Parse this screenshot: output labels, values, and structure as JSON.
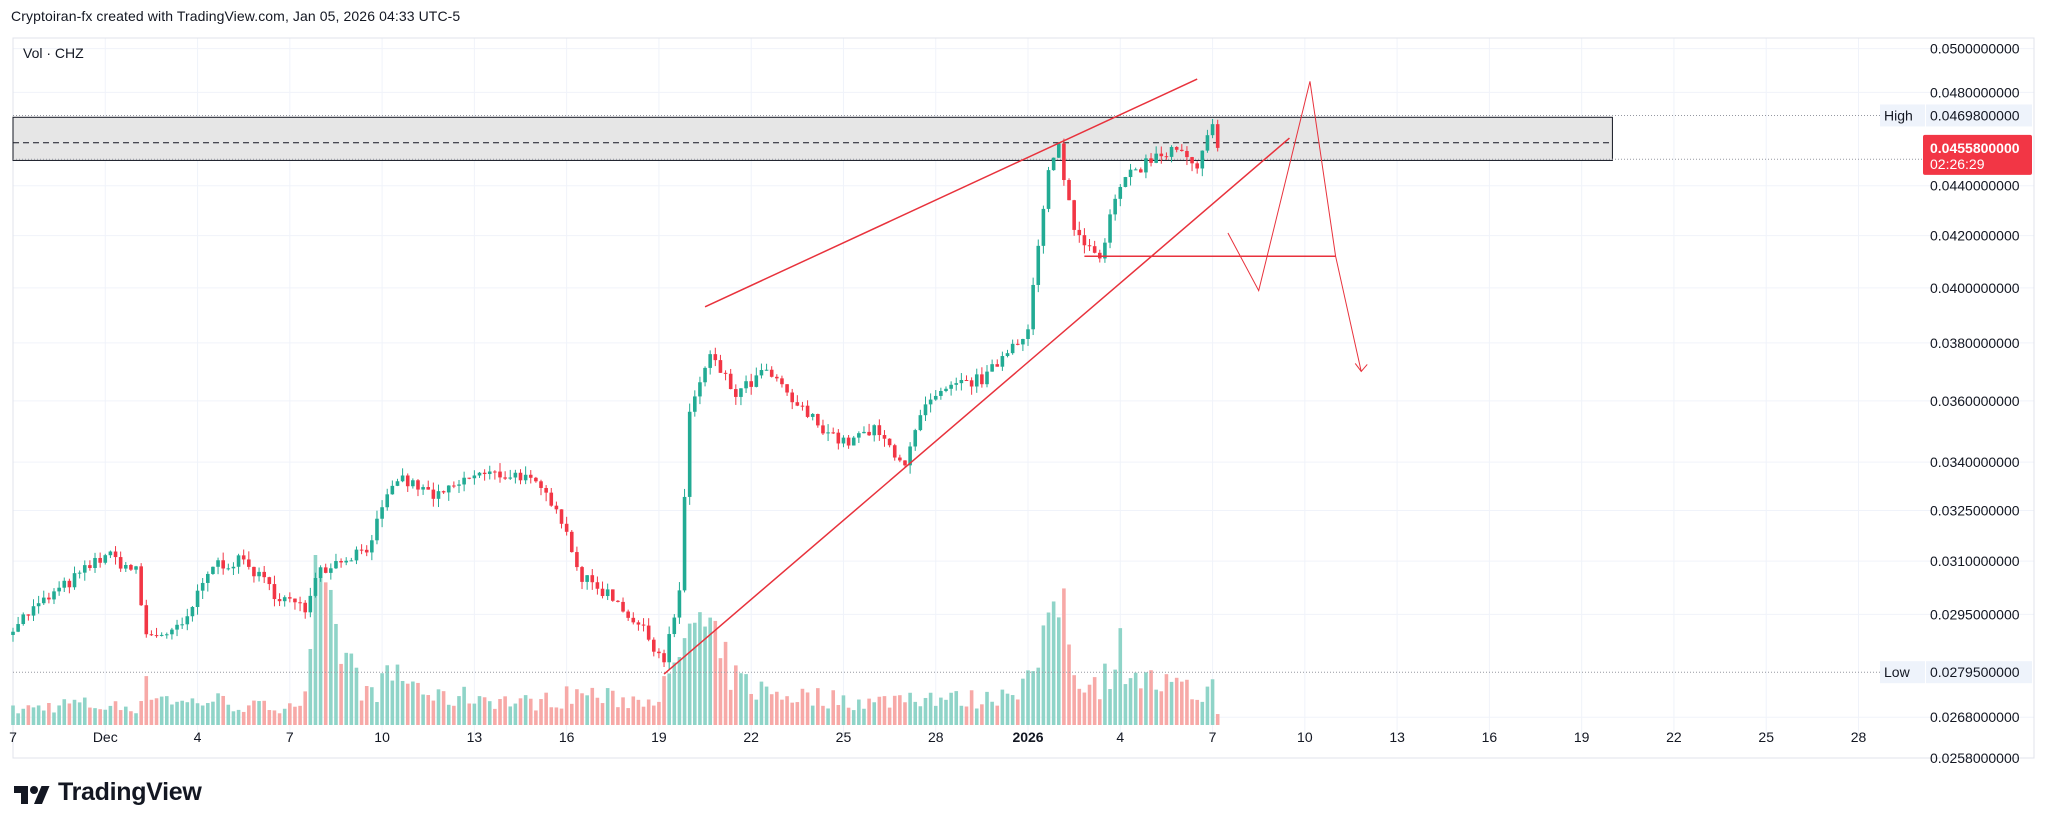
{
  "header": {
    "attribution": "Cryptoiran-fx created with TradingView.com, Jan 05, 2026 04:33 UTC-5",
    "legend": "Vol · CHZ"
  },
  "brand": {
    "name": "TradingView",
    "icon": "tradingview-logo-icon"
  },
  "colors": {
    "up": "#22ab94",
    "down": "#f23645",
    "up_volume": "#8fd4c8",
    "down_volume": "#f7a9a7",
    "drawing": "#e8323c",
    "zone_fill": "#e6e6e6",
    "grid": "#f0f3fa",
    "price_badge": "#f23645"
  },
  "price_axis": {
    "labels": [
      "0.0500000000",
      "0.0480000000",
      "0.0440000000",
      "0.0420000000",
      "0.0400000000",
      "0.0380000000",
      "0.0360000000",
      "0.0340000000",
      "0.0325000000",
      "0.0310000000",
      "0.0295000000",
      "0.0268000000",
      "0.0258000000"
    ],
    "high_tag": "High",
    "high_value": "0.0469800000",
    "low_tag": "Low",
    "low_value": "0.0279500000",
    "current_price": "0.0455800000",
    "countdown": "02:26:29"
  },
  "time_axis": {
    "labels": [
      "7",
      "Dec",
      "4",
      "7",
      "10",
      "13",
      "16",
      "19",
      "22",
      "25",
      "28",
      "2026",
      "4",
      "7",
      "10",
      "13",
      "16",
      "19",
      "22",
      "25",
      "28"
    ]
  },
  "chart_data": {
    "type": "candlestick",
    "symbol": "CHZ",
    "timeframe": "4H (estimated)",
    "price_scale": "log",
    "y_range": [
      0.0258,
      0.0505
    ],
    "x_range": [
      "2025-11-27",
      "2026-01-28"
    ],
    "session_high": 0.04698,
    "session_low": 0.02795,
    "last_price": 0.04558,
    "anchors": [
      {
        "date": "2025-11-27T00:00",
        "close": 0.0292,
        "vol": 8
      },
      {
        "date": "2025-11-29T00:00",
        "close": 0.0305,
        "vol": 12
      },
      {
        "date": "2025-11-30T00:00",
        "close": 0.0312,
        "vol": 10
      },
      {
        "date": "2025-12-01T00:00",
        "close": 0.0307,
        "vol": 10
      },
      {
        "date": "2025-12-01T08:00",
        "close": 0.0289,
        "vol": 20
      },
      {
        "date": "2025-12-02T12:00",
        "close": 0.0291,
        "vol": 12
      },
      {
        "date": "2025-12-03T12:00",
        "close": 0.0309,
        "vol": 14
      },
      {
        "date": "2025-12-04T12:00",
        "close": 0.031,
        "vol": 10
      },
      {
        "date": "2025-12-05T12:00",
        "close": 0.0301,
        "vol": 10
      },
      {
        "date": "2025-12-06T12:00",
        "close": 0.0296,
        "vol": 14
      },
      {
        "date": "2025-12-06T20:00",
        "close": 0.0307,
        "vol": 70
      },
      {
        "date": "2025-12-08T12:00",
        "close": 0.0314,
        "vol": 16
      },
      {
        "date": "2025-12-09T12:00",
        "close": 0.0335,
        "vol": 28
      },
      {
        "date": "2025-12-10T20:00",
        "close": 0.0329,
        "vol": 14
      },
      {
        "date": "2025-12-12T00:00",
        "close": 0.0336,
        "vol": 16
      },
      {
        "date": "2025-12-13T12:00",
        "close": 0.0336,
        "vol": 12
      },
      {
        "date": "2025-12-14T16:00",
        "close": 0.0327,
        "vol": 14
      },
      {
        "date": "2025-12-15T12:00",
        "close": 0.0305,
        "vol": 18
      },
      {
        "date": "2025-12-16T12:00",
        "close": 0.03,
        "vol": 14
      },
      {
        "date": "2025-12-17T08:00",
        "close": 0.0292,
        "vol": 14
      },
      {
        "date": "2025-12-18T04:00",
        "close": 0.0283,
        "vol": 20
      },
      {
        "date": "2025-12-18T16:00",
        "close": 0.03,
        "vol": 30
      },
      {
        "date": "2025-12-19T00:00",
        "close": 0.0357,
        "vol": 60
      },
      {
        "date": "2025-12-19T16:00",
        "close": 0.0375,
        "vol": 45
      },
      {
        "date": "2025-12-20T12:00",
        "close": 0.0362,
        "vol": 25
      },
      {
        "date": "2025-12-21T12:00",
        "close": 0.037,
        "vol": 18
      },
      {
        "date": "2025-12-22T12:00",
        "close": 0.0358,
        "vol": 16
      },
      {
        "date": "2025-12-24T00:00",
        "close": 0.0346,
        "vol": 14
      },
      {
        "date": "2025-12-25T00:00",
        "close": 0.035,
        "vol": 12
      },
      {
        "date": "2025-12-26T00:00",
        "close": 0.034,
        "vol": 16
      },
      {
        "date": "2025-12-26T16:00",
        "close": 0.0358,
        "vol": 16
      },
      {
        "date": "2025-12-27T16:00",
        "close": 0.0365,
        "vol": 14
      },
      {
        "date": "2025-12-28T16:00",
        "close": 0.0368,
        "vol": 14
      },
      {
        "date": "2025-12-29T08:00",
        "close": 0.0378,
        "vol": 20
      },
      {
        "date": "2025-12-30T00:00",
        "close": 0.0385,
        "vol": 24
      },
      {
        "date": "2025-12-30T16:00",
        "close": 0.0445,
        "vol": 45
      },
      {
        "date": "2025-12-31T00:00",
        "close": 0.0456,
        "vol": 80
      },
      {
        "date": "2025-12-31T12:00",
        "close": 0.0422,
        "vol": 30
      },
      {
        "date": "2026-01-01T08:00",
        "close": 0.0413,
        "vol": 22
      },
      {
        "date": "2026-01-02T00:00",
        "close": 0.044,
        "vol": 40
      },
      {
        "date": "2026-01-02T20:00",
        "close": 0.045,
        "vol": 24
      },
      {
        "date": "2026-01-03T20:00",
        "close": 0.0455,
        "vol": 20
      },
      {
        "date": "2026-01-04T12:00",
        "close": 0.0446,
        "vol": 16
      },
      {
        "date": "2026-01-05T00:00",
        "close": 0.0466,
        "vol": 20
      },
      {
        "date": "2026-01-05T04:00",
        "close": 0.04558,
        "vol": 6
      }
    ],
    "annotations": {
      "resistance_zone": {
        "top": 0.0469,
        "bottom": 0.04505,
        "mid": 0.0458
      },
      "dotted_high_line": 0.04698,
      "dotted_low_line": 0.02795,
      "dotted_last_line": 0.0451,
      "rising_wedge_upper": [
        {
          "t": "2025-12-19T12:00",
          "p": 0.0393
        },
        {
          "t": "2026-01-04T12:00",
          "p": 0.0486
        }
      ],
      "rising_wedge_lower": [
        {
          "t": "2025-12-18T04:00",
          "p": 0.0279
        },
        {
          "t": "2026-01-07T12:00",
          "p": 0.046
        }
      ],
      "support_line": {
        "p": 0.0412,
        "from": "2025-12-31T20:00",
        "to": "2026-01-09T00:00"
      },
      "projected_path": [
        {
          "t": "2026-01-05T12:00",
          "p": 0.0421
        },
        {
          "t": "2026-01-06T12:00",
          "p": 0.0399
        },
        {
          "t": "2026-01-08T04:00",
          "p": 0.0485
        },
        {
          "t": "2026-01-09T00:00",
          "p": 0.0412
        },
        {
          "t": "2026-01-09T20:00",
          "p": 0.037
        }
      ]
    }
  }
}
